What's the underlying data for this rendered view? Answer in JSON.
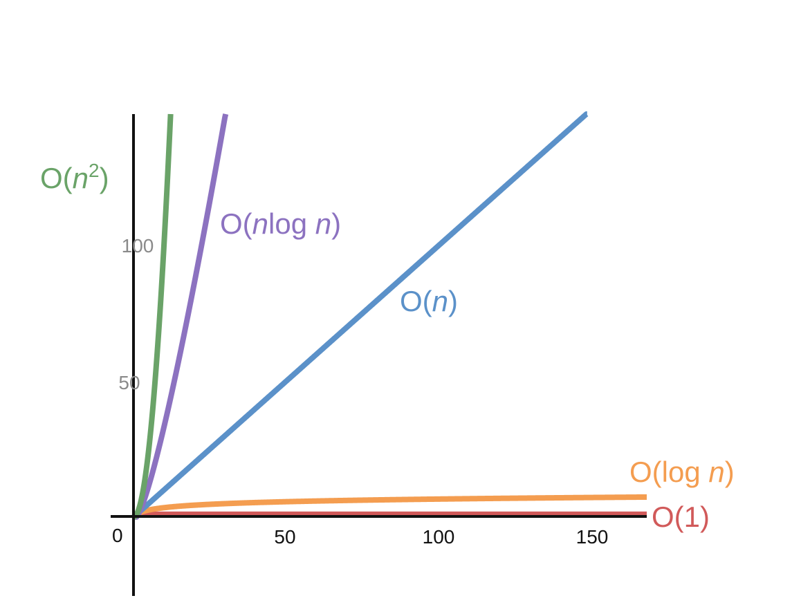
{
  "chart_data": {
    "type": "line",
    "xlim": [
      -7.6,
      170
    ],
    "ylim": [
      -29.4,
      150
    ],
    "origin_label": "0",
    "x_ticks": [
      {
        "value": 50,
        "label": "50"
      },
      {
        "value": 100,
        "label": "100"
      },
      {
        "value": 150,
        "label": "150"
      }
    ],
    "y_ticks": [
      {
        "value": 50,
        "label": "50"
      },
      {
        "value": 100,
        "label": "100"
      }
    ],
    "grid": false,
    "series": [
      {
        "key": "n2",
        "label_main": "O(",
        "label_n": "n",
        "label_sup": "2",
        "label_tail": ")",
        "color": "#6aa368",
        "func": "square"
      },
      {
        "key": "nlogn",
        "label_main": "O(",
        "label_n": "n",
        "label_mid": "log ",
        "label_n2": "n",
        "label_tail": ")",
        "color": "#8c72c0",
        "func": "nlogn"
      },
      {
        "key": "n",
        "label_main": "O(",
        "label_n": "n",
        "label_tail": ")",
        "color": "#5b91c9",
        "func": "linear"
      },
      {
        "key": "logn",
        "label_main": "O(log ",
        "label_n": "n",
        "label_tail": ")",
        "color": "#f49d50",
        "func": "log"
      },
      {
        "key": "one",
        "label_main": "O(1)",
        "color": "#d15a5a",
        "func": "constant"
      }
    ]
  }
}
